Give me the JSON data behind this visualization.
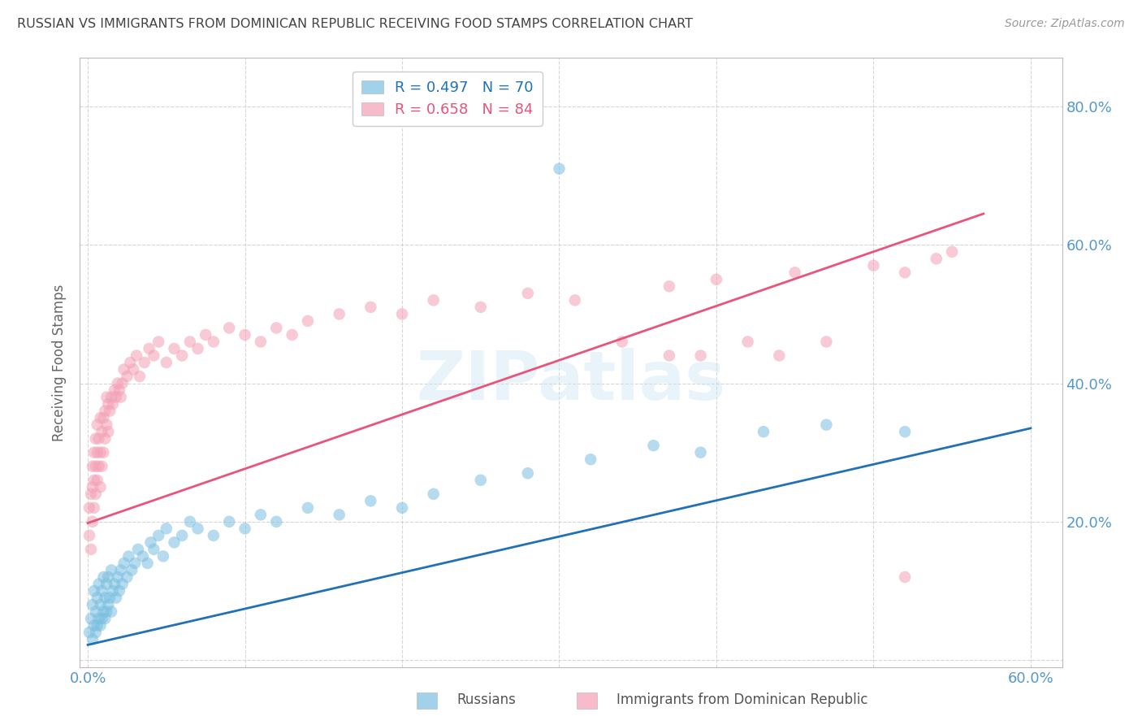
{
  "title": "RUSSIAN VS IMMIGRANTS FROM DOMINICAN REPUBLIC RECEIVING FOOD STAMPS CORRELATION CHART",
  "source_text": "Source: ZipAtlas.com",
  "ylabel": "Receiving Food Stamps",
  "watermark": "ZIPatlas",
  "russian_R": 0.497,
  "russian_N": 70,
  "dominican_R": 0.658,
  "dominican_N": 84,
  "russian_color": "#7bbfe0",
  "dominican_color": "#f4a0b5",
  "russian_line_color": "#2171b5",
  "dominican_line_color": "#e8547a",
  "legend_label_russian": "Russians",
  "legend_label_dominican": "Immigrants from Dominican Republic",
  "xlim": [
    -0.005,
    0.62
  ],
  "ylim": [
    -0.01,
    0.87
  ],
  "background_color": "#ffffff",
  "grid_color": "#cccccc",
  "title_color": "#444444",
  "tick_color": "#5599cc",
  "russian_x": [
    0.001,
    0.002,
    0.003,
    0.003,
    0.004,
    0.004,
    0.005,
    0.005,
    0.006,
    0.006,
    0.007,
    0.007,
    0.008,
    0.008,
    0.009,
    0.009,
    0.01,
    0.01,
    0.011,
    0.011,
    0.012,
    0.012,
    0.013,
    0.013,
    0.014,
    0.015,
    0.015,
    0.016,
    0.017,
    0.018,
    0.019,
    0.02,
    0.021,
    0.022,
    0.023,
    0.025,
    0.026,
    0.028,
    0.03,
    0.032,
    0.035,
    0.038,
    0.04,
    0.042,
    0.045,
    0.048,
    0.05,
    0.055,
    0.06,
    0.065,
    0.07,
    0.08,
    0.09,
    0.1,
    0.11,
    0.12,
    0.14,
    0.16,
    0.18,
    0.2,
    0.22,
    0.25,
    0.28,
    0.32,
    0.36,
    0.39,
    0.43,
    0.47,
    0.52,
    0.3
  ],
  "russian_y": [
    0.04,
    0.06,
    0.03,
    0.08,
    0.05,
    0.1,
    0.04,
    0.07,
    0.05,
    0.09,
    0.06,
    0.11,
    0.05,
    0.08,
    0.06,
    0.1,
    0.07,
    0.12,
    0.06,
    0.09,
    0.07,
    0.11,
    0.08,
    0.12,
    0.09,
    0.07,
    0.13,
    0.1,
    0.11,
    0.09,
    0.12,
    0.1,
    0.13,
    0.11,
    0.14,
    0.12,
    0.15,
    0.13,
    0.14,
    0.16,
    0.15,
    0.14,
    0.17,
    0.16,
    0.18,
    0.15,
    0.19,
    0.17,
    0.18,
    0.2,
    0.19,
    0.18,
    0.2,
    0.19,
    0.21,
    0.2,
    0.22,
    0.21,
    0.23,
    0.22,
    0.24,
    0.26,
    0.27,
    0.29,
    0.31,
    0.3,
    0.33,
    0.34,
    0.33,
    0.71
  ],
  "dominican_x": [
    0.001,
    0.001,
    0.002,
    0.002,
    0.003,
    0.003,
    0.003,
    0.004,
    0.004,
    0.004,
    0.005,
    0.005,
    0.005,
    0.006,
    0.006,
    0.006,
    0.007,
    0.007,
    0.008,
    0.008,
    0.008,
    0.009,
    0.009,
    0.01,
    0.01,
    0.011,
    0.011,
    0.012,
    0.012,
    0.013,
    0.013,
    0.014,
    0.015,
    0.016,
    0.017,
    0.018,
    0.019,
    0.02,
    0.021,
    0.022,
    0.023,
    0.025,
    0.027,
    0.029,
    0.031,
    0.033,
    0.036,
    0.039,
    0.042,
    0.045,
    0.05,
    0.055,
    0.06,
    0.065,
    0.07,
    0.075,
    0.08,
    0.09,
    0.1,
    0.11,
    0.12,
    0.13,
    0.14,
    0.16,
    0.18,
    0.2,
    0.22,
    0.25,
    0.28,
    0.31,
    0.34,
    0.37,
    0.4,
    0.42,
    0.45,
    0.47,
    0.5,
    0.52,
    0.54,
    0.55,
    0.37,
    0.39,
    0.44,
    0.52
  ],
  "dominican_y": [
    0.18,
    0.22,
    0.16,
    0.24,
    0.2,
    0.25,
    0.28,
    0.22,
    0.26,
    0.3,
    0.24,
    0.28,
    0.32,
    0.26,
    0.3,
    0.34,
    0.28,
    0.32,
    0.25,
    0.3,
    0.35,
    0.28,
    0.33,
    0.3,
    0.35,
    0.32,
    0.36,
    0.34,
    0.38,
    0.33,
    0.37,
    0.36,
    0.38,
    0.37,
    0.39,
    0.38,
    0.4,
    0.39,
    0.38,
    0.4,
    0.42,
    0.41,
    0.43,
    0.42,
    0.44,
    0.41,
    0.43,
    0.45,
    0.44,
    0.46,
    0.43,
    0.45,
    0.44,
    0.46,
    0.45,
    0.47,
    0.46,
    0.48,
    0.47,
    0.46,
    0.48,
    0.47,
    0.49,
    0.5,
    0.51,
    0.5,
    0.52,
    0.51,
    0.53,
    0.52,
    0.46,
    0.54,
    0.55,
    0.46,
    0.56,
    0.46,
    0.57,
    0.56,
    0.58,
    0.59,
    0.44,
    0.44,
    0.44,
    0.12
  ],
  "russian_line_x": [
    0.0,
    0.6
  ],
  "russian_line_y": [
    0.022,
    0.335
  ],
  "dominican_line_x": [
    0.0,
    0.57
  ],
  "dominican_line_y": [
    0.198,
    0.645
  ]
}
